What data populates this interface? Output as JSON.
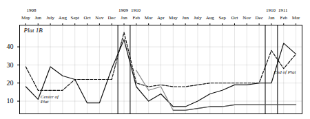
{
  "chart_data": {
    "type": "line",
    "title": "Plat 1B",
    "categories": [
      "May",
      "Jun",
      "July",
      "Aug",
      "Sept",
      "Oct",
      "Nov",
      "Dec",
      "Jan",
      "Feb",
      "Mar",
      "Apr",
      "May",
      "Jun",
      "July",
      "Aug",
      "Sep",
      "Oct",
      "Nov",
      "Dec",
      "Jan",
      "Feb",
      "Mar"
    ],
    "series": [
      {
        "color": "#111111",
        "line_style": "solid",
        "values": [
          18,
          11,
          29,
          24,
          22,
          9,
          9,
          28,
          44,
          18,
          10,
          14,
          7,
          7,
          10,
          14,
          16,
          19,
          19,
          20,
          20,
          42,
          36
        ]
      },
      {
        "color": "#111111",
        "line_style": "dashed",
        "values": [
          29,
          16,
          16,
          16,
          22,
          22,
          22,
          22,
          48,
          20,
          18,
          19,
          18,
          18,
          19,
          20,
          20,
          20,
          20,
          20,
          38,
          28,
          36
        ]
      },
      {
        "color": "#888888",
        "line_style": "solid",
        "values": [
          null,
          null,
          null,
          null,
          null,
          null,
          null,
          null,
          null,
          27,
          16,
          18,
          5,
          5,
          6,
          7,
          7,
          8,
          8,
          8,
          8,
          8,
          8
        ]
      },
      {
        "color": "#444444",
        "line_style": "solid",
        "values": [
          null,
          null,
          null,
          null,
          null,
          null,
          null,
          null,
          null,
          null,
          null,
          null,
          5,
          5,
          6,
          7,
          7,
          8,
          8,
          8,
          8,
          8,
          8
        ]
      }
    ],
    "ylim": [
      3,
      52
    ],
    "yticks": [
      10,
      20,
      30,
      40
    ],
    "grid": true,
    "year_labels": [
      {
        "text": "1908",
        "x": 0
      },
      {
        "text": "1909",
        "x": 7.5
      },
      {
        "text": "1910",
        "x": 8.5
      },
      {
        "text": "1910",
        "x": 19.5
      },
      {
        "text": "1911",
        "x": 20.5
      }
    ],
    "separators": [
      7.5,
      8.5,
      19.5,
      20.5
    ],
    "annotations": [
      {
        "text": "Center of\nPlat",
        "x": 1.2,
        "y": 11
      },
      {
        "text": "End of Plat",
        "x": 20.2,
        "y": 26
      }
    ]
  }
}
